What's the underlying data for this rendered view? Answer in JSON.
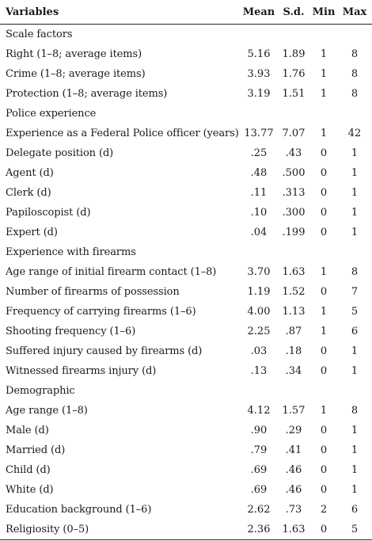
{
  "headers": [
    "Variables",
    "Mean",
    "S.d.",
    "Min",
    "Max"
  ],
  "rows": [
    {
      "type": "section",
      "label": "Scale factors"
    },
    {
      "type": "row",
      "label": "Right (1–8; average items)",
      "mean": "5.16",
      "sd": "1.89",
      "min": "1",
      "max": "8"
    },
    {
      "type": "row",
      "label": "Crime (1–8; average items)",
      "mean": "3.93",
      "sd": "1.76",
      "min": "1",
      "max": "8"
    },
    {
      "type": "row",
      "label": "Protection (1–8; average items)",
      "mean": "3.19",
      "sd": "1.51",
      "min": "1",
      "max": "8"
    },
    {
      "type": "section",
      "label": "Police experience"
    },
    {
      "type": "row",
      "label": "Experience as a Federal Police officer (years)",
      "mean": "13.77",
      "sd": "7.07",
      "min": "1",
      "max": "42"
    },
    {
      "type": "row",
      "label": "Delegate position (d)",
      "mean": ".25",
      "sd": ".43",
      "min": "0",
      "max": "1"
    },
    {
      "type": "row",
      "label": "Agent (d)",
      "mean": ".48",
      "sd": ".500",
      "min": "0",
      "max": "1"
    },
    {
      "type": "row",
      "label": "Clerk (d)",
      "mean": ".11",
      "sd": ".313",
      "min": "0",
      "max": "1"
    },
    {
      "type": "row",
      "label": "Papiloscopist (d)",
      "mean": ".10",
      "sd": ".300",
      "min": "0",
      "max": "1"
    },
    {
      "type": "row",
      "label": "Expert (d)",
      "mean": ".04",
      "sd": ".199",
      "min": "0",
      "max": "1"
    },
    {
      "type": "section",
      "label": "Experience with firearms"
    },
    {
      "type": "row",
      "label": "Age range of initial firearm contact (1–8)",
      "mean": "3.70",
      "sd": "1.63",
      "min": "1",
      "max": "8"
    },
    {
      "type": "row",
      "label": "Number of firearms of possession",
      "mean": "1.19",
      "sd": "1.52",
      "min": "0",
      "max": "7"
    },
    {
      "type": "row",
      "label": "Frequency of carrying firearms (1–6)",
      "mean": "4.00",
      "sd": "1.13",
      "min": "1",
      "max": "5"
    },
    {
      "type": "row",
      "label": "Shooting frequency (1–6)",
      "mean": "2.25",
      "sd": ".87",
      "min": "1",
      "max": "6"
    },
    {
      "type": "row",
      "label": "Suffered injury caused by firearms (d)",
      "mean": ".03",
      "sd": ".18",
      "min": "0",
      "max": "1"
    },
    {
      "type": "row",
      "label": "Witnessed firearms injury (d)",
      "mean": ".13",
      "sd": ".34",
      "min": "0",
      "max": "1"
    },
    {
      "type": "section",
      "label": "Demographic"
    },
    {
      "type": "row",
      "label": "Age range (1–8)",
      "mean": "4.12",
      "sd": "1.57",
      "min": "1",
      "max": "8"
    },
    {
      "type": "row",
      "label": "Male (d)",
      "mean": ".90",
      "sd": ".29",
      "min": "0",
      "max": "1"
    },
    {
      "type": "row",
      "label": "Married (d)",
      "mean": ".79",
      "sd": ".41",
      "min": "0",
      "max": "1"
    },
    {
      "type": "row",
      "label": "Child (d)",
      "mean": ".69",
      "sd": ".46",
      "min": "0",
      "max": "1"
    },
    {
      "type": "row",
      "label": "White (d)",
      "mean": ".69",
      "sd": ".46",
      "min": "0",
      "max": "1"
    },
    {
      "type": "row",
      "label": "Education background (1–6)",
      "mean": "2.62",
      "sd": ".73",
      "min": "2",
      "max": "6"
    },
    {
      "type": "row",
      "label": "Religiosity (0–5)",
      "mean": "2.36",
      "sd": "1.63",
      "min": "0",
      "max": "5"
    }
  ]
}
